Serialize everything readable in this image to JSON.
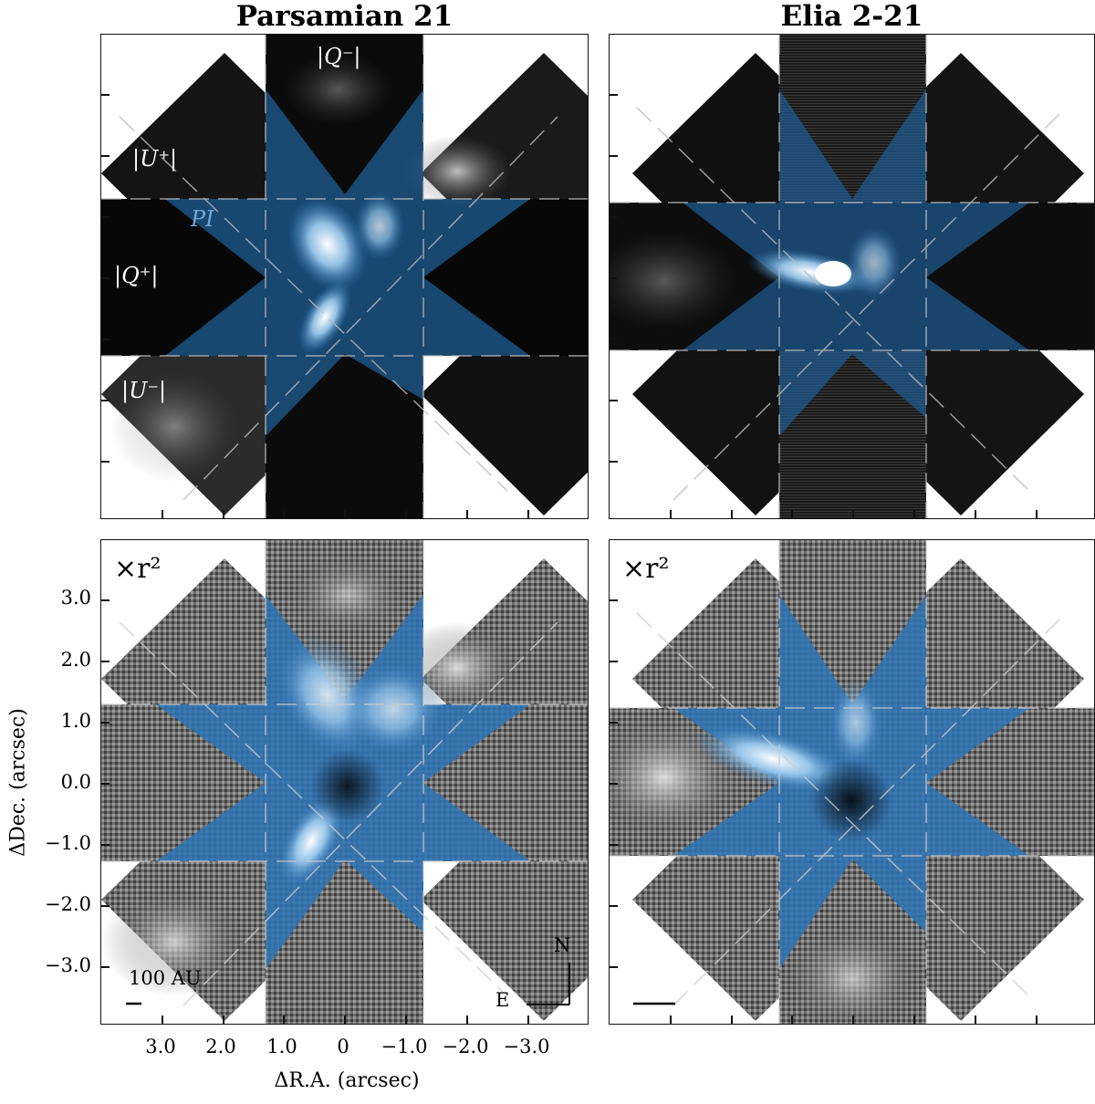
{
  "titles": {
    "left": "Parsamian 21",
    "right": "Elia 2-21"
  },
  "labels": {
    "q_minus": "|Q⁻|",
    "u_plus": "|U⁺|",
    "pi": "PI",
    "q_plus": "|Q⁺|",
    "u_minus": "|U⁻|",
    "r2_left": "×r²",
    "r2_right": "×r²",
    "scale_bar": "100 AU",
    "north": "N",
    "east": "E"
  },
  "axes": {
    "ylabel": "ΔDec. (arcsec)",
    "xlabel": "ΔR.A. (arcsec)",
    "yticks": [
      "3.0",
      "2.0",
      "1.0",
      "0.0",
      "−1.0",
      "−2.0",
      "−3.0"
    ],
    "xticks": [
      "3.0",
      "2.0",
      "1.0",
      "0",
      "−1.0",
      "−2.0",
      "−3.0"
    ]
  },
  "colors": {
    "pi_blue": "#3b82c4",
    "frame": "#111111"
  }
}
